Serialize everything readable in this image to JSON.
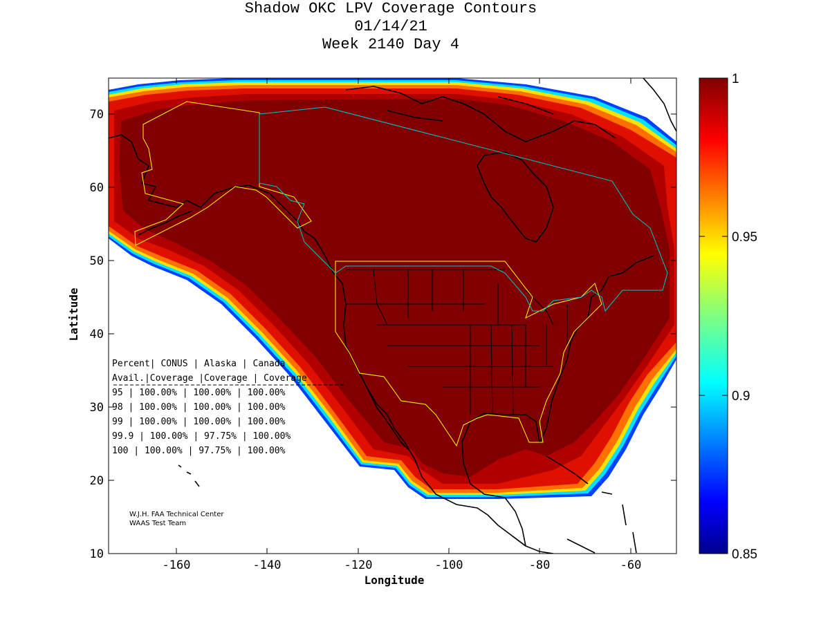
{
  "title": {
    "line1": "Shadow OKC LPV Coverage Contours",
    "line2": "01/14/21",
    "line3": "Week 2140 Day 4"
  },
  "axes": {
    "xlabel": "Longitude",
    "ylabel": "Latitude",
    "xlim": [
      -175,
      -50
    ],
    "ylim": [
      10,
      75
    ],
    "xticks": [
      -160,
      -140,
      -120,
      -100,
      -80,
      -60
    ],
    "yticks": [
      10,
      20,
      30,
      40,
      50,
      60,
      70
    ]
  },
  "colorbar": {
    "min": 0.85,
    "max": 1,
    "ticks": [
      "1",
      "0.95",
      "0.9",
      "0.85"
    ],
    "tick_values": [
      1,
      0.95,
      0.9,
      0.85
    ],
    "colormap": "jet"
  },
  "table": {
    "header1": "Percent| CONUS   | Alaska  | Canada",
    "header2": " Avail.|Coverage |Coverage | Coverage",
    "rows": [
      "  95   | 100.00%  | 100.00% | 100.00%",
      "  98   | 100.00%  | 100.00% | 100.00%",
      "  99   | 100.00%  | 100.00% | 100.00%",
      "99.9   | 100.00%  | 97.75%  | 100.00%",
      " 100   | 100.00%  | 97.75%  | 100.00%"
    ]
  },
  "credit": {
    "line1": "W.J.H. FAA Technical Center",
    "line2": "WAAS Test Team"
  },
  "colors": {
    "max_coverage": "#800000",
    "map_lines": "#000000",
    "conus_alaska_border": "#ffff00",
    "canada_border": "#00c8c8"
  }
}
